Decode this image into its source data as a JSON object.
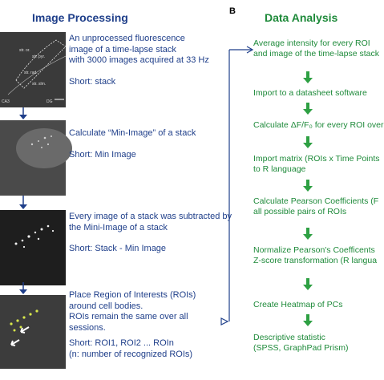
{
  "panel_label": "B",
  "left": {
    "title": "Image Processing",
    "steps": [
      {
        "lines": [
          "An unprocessed fluorescence",
          "image of a time-lapse stack",
          "with 3000 images acquired at 33 Hz"
        ],
        "short": "Short: stack"
      },
      {
        "lines": [
          "Calculate “Min-Image” of a stack"
        ],
        "short": "Short: Min Image"
      },
      {
        "lines": [
          "Every image of a stack was subtracted by",
          "the Mini-Image of a stack"
        ],
        "short": "Short: Stack - Min Image"
      },
      {
        "lines": [
          "Place Region of Interests (ROIs)",
          "around cell bodies.",
          "ROIs remain the same over all",
          "sessions."
        ],
        "short": "Short: ROI1, ROI2 ... ROIn",
        "note": "(n: number of recognized ROIs)"
      }
    ],
    "image_labels": {
      "a1": "str. or.",
      "a2": "str. pyr.",
      "a3": "str. rad.",
      "a4": "str. slm.",
      "ca": "CA3",
      "dg": "DG"
    }
  },
  "right": {
    "title": "Data Analysis",
    "steps": [
      [
        "Average intensity for every ROI",
        "and image of the time-lapse stack"
      ],
      [
        "Import to a datasheet software"
      ],
      [
        "Calculate ΔF/F₀ for every ROI over"
      ],
      [
        "Import matrix (ROIs x Time Points",
        "to R language"
      ],
      [
        "Calculate Pearson Coefficients (F",
        "all possible pairs of ROIs"
      ],
      [
        "Normalize Pearson's Coefficents",
        "Z-score transformation (R langua"
      ],
      [
        "Create Heatmap of PCs"
      ],
      [
        "Descriptive statistic",
        "(SPSS, GraphPad Prism)"
      ]
    ]
  },
  "colors": {
    "left_text": "#1f3f8a",
    "right_text": "#1e8a3a",
    "arrow_blue": "#1f3f8a",
    "arrow_green": "#2ea043"
  }
}
